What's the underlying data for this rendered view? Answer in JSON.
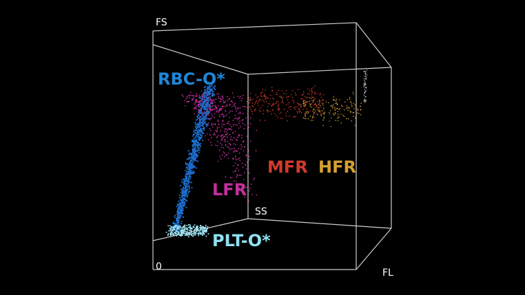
{
  "axes": {
    "fs": "FS",
    "ss": "SS",
    "fl": "FL",
    "origin": "0"
  },
  "populations": {
    "rbc": "RBC-O*",
    "lfr": "LFR",
    "mfr": "MFR",
    "hfr": "HFR",
    "plt": "PLT-O*"
  }
}
